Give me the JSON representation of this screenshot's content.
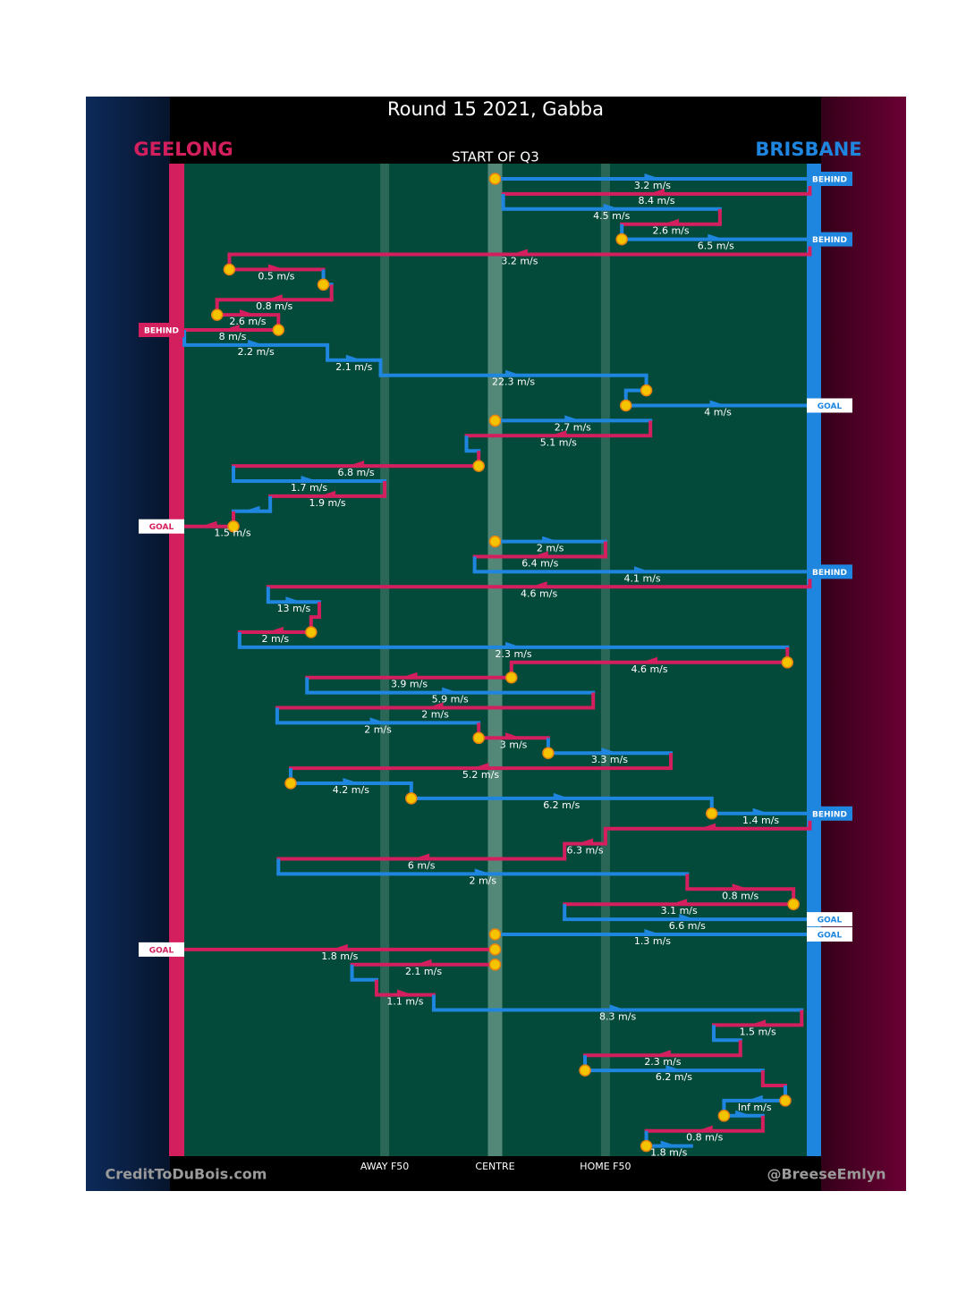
{
  "chart_data": {
    "type": "possession-chain",
    "title": "Round 15 2021, Gabba",
    "subtitle": "START OF Q3",
    "credit_left": "CreditToDuBois.com",
    "credit_right": "@BreeseEmlyn",
    "teams": [
      {
        "name": "GEELONG",
        "color": "#d41f5e"
      },
      {
        "name": "BRISBANE",
        "color": "#1f86e0"
      }
    ],
    "xlim": [
      0,
      156
    ],
    "xticks": [
      {
        "value": 51,
        "label": "AWAY F50"
      },
      {
        "value": 78,
        "label": "CENTRE"
      },
      {
        "value": 105,
        "label": "HOME F50"
      }
    ],
    "rows": [
      {
        "team": 1,
        "from": 78,
        "to": 155,
        "speed": 3.2,
        "speed_label": "3.2 m/s",
        "outcome": "BEHIND",
        "turnover": true
      },
      {
        "team": 0,
        "from": 155,
        "to": 80,
        "speed": 8.4,
        "speed_label": "8.4 m/s"
      },
      {
        "team": 1,
        "from": 80,
        "to": 133,
        "speed": 4.5,
        "speed_label": "4.5 m/s"
      },
      {
        "team": 0,
        "from": 133,
        "to": 109,
        "speed": 2.6,
        "speed_label": "2.6 m/s"
      },
      {
        "team": 1,
        "from": 109,
        "to": 155,
        "speed": 6.5,
        "speed_label": "6.5 m/s",
        "outcome": "BEHIND",
        "turnover": true
      },
      {
        "team": 0,
        "from": 155,
        "to": 13,
        "speed": 3.2,
        "speed_label": "3.2 m/s"
      },
      {
        "team": 0,
        "from": 13,
        "to": 36,
        "speed": 0.5,
        "speed_label": "0.5 m/s",
        "turnover": true
      },
      {
        "team": 1,
        "from": 36,
        "to": 38,
        "turnover": true
      },
      {
        "team": 0,
        "from": 38,
        "to": 10,
        "speed": 0.8,
        "speed_label": "0.8 m/s"
      },
      {
        "team": 0,
        "from": 10,
        "to": 25,
        "speed": 2.6,
        "speed_label": "2.6 m/s",
        "turnover": true
      },
      {
        "team": 0,
        "from": 25,
        "to": 2,
        "speed": 8,
        "speed_label": "8 m/s",
        "outcome": "BEHIND",
        "turnover": true
      },
      {
        "team": 1,
        "from": 2,
        "to": 37,
        "speed": 2.2,
        "speed_label": "2.2 m/s"
      },
      {
        "team": 1,
        "from": 37,
        "to": 50,
        "speed": 2.1,
        "speed_label": "2.1 m/s"
      },
      {
        "team": 1,
        "from": 50,
        "to": 115,
        "speed": 22.3,
        "speed_label": "22.3 m/s"
      },
      {
        "team": 1,
        "from": 115,
        "to": 110,
        "turnover": true
      },
      {
        "team": 1,
        "from": 110,
        "to": 155,
        "speed": 4,
        "speed_label": "4 m/s",
        "outcome": "GOAL",
        "turnover": true
      },
      {
        "team": 1,
        "from": 78,
        "to": 116,
        "speed": 2.7,
        "speed_label": "2.7 m/s",
        "turnover": true
      },
      {
        "team": 0,
        "from": 116,
        "to": 71,
        "speed": 5.1,
        "speed_label": "5.1 m/s"
      },
      {
        "team": 1,
        "from": 71,
        "to": 74
      },
      {
        "team": 0,
        "from": 74,
        "to": 14,
        "speed": 6.8,
        "speed_label": "6.8 m/s",
        "turnover": true
      },
      {
        "team": 1,
        "from": 14,
        "to": 51,
        "speed": 1.7,
        "speed_label": "1.7 m/s"
      },
      {
        "team": 0,
        "from": 51,
        "to": 23,
        "speed": 1.9,
        "speed_label": "1.9 m/s"
      },
      {
        "team": 1,
        "from": 23,
        "to": 14
      },
      {
        "team": 0,
        "from": 14,
        "to": 2,
        "speed": 1.5,
        "speed_label": "1.5 m/s",
        "outcome": "GOAL",
        "turnover": true
      },
      {
        "team": 1,
        "from": 78,
        "to": 105,
        "speed": 2,
        "speed_label": "2 m/s",
        "turnover": true
      },
      {
        "team": 0,
        "from": 105,
        "to": 73,
        "speed": 6.4,
        "speed_label": "6.4 m/s"
      },
      {
        "team": 1,
        "from": 73,
        "to": 155,
        "speed": 4.1,
        "speed_label": "4.1 m/s",
        "outcome": "BEHIND"
      },
      {
        "team": 0,
        "from": 155,
        "to": 22.5,
        "speed": 4.6,
        "speed_label": "4.6 m/s"
      },
      {
        "team": 1,
        "from": 22.5,
        "to": 35,
        "speed": 13,
        "speed_label": "13 m/s"
      },
      {
        "team": 0,
        "from": 35,
        "to": 33
      },
      {
        "team": 0,
        "from": 33,
        "to": 15.5,
        "speed": 2,
        "speed_label": "2 m/s",
        "turnover": true
      },
      {
        "team": 1,
        "from": 15.5,
        "to": 149.5,
        "speed": 2.3,
        "speed_label": "2.3 m/s"
      },
      {
        "team": 0,
        "from": 149.5,
        "to": 82,
        "speed": 4.6,
        "speed_label": "4.6 m/s",
        "turnover": true
      },
      {
        "team": 0,
        "from": 82,
        "to": 32,
        "speed": 3.9,
        "speed_label": "3.9 m/s",
        "turnover": true
      },
      {
        "team": 1,
        "from": 32,
        "to": 102,
        "speed": 5.9,
        "speed_label": "5.9 m/s"
      },
      {
        "team": 0,
        "from": 102,
        "to": 24.7,
        "speed": 2,
        "speed_label": "2 m/s"
      },
      {
        "team": 1,
        "from": 24.7,
        "to": 74,
        "speed": 2,
        "speed_label": "2 m/s"
      },
      {
        "team": 0,
        "from": 74,
        "to": 91,
        "speed": 3,
        "speed_label": "3 m/s",
        "turnover": true
      },
      {
        "team": 1,
        "from": 91,
        "to": 121,
        "speed": 3.3,
        "speed_label": "3.3 m/s",
        "turnover": true
      },
      {
        "team": 0,
        "from": 121,
        "to": 28,
        "speed": 5.2,
        "speed_label": "5.2 m/s"
      },
      {
        "team": 1,
        "from": 28,
        "to": 57.5,
        "speed": 4.2,
        "speed_label": "4.2 m/s",
        "turnover": true
      },
      {
        "team": 1,
        "from": 57.5,
        "to": 131,
        "speed": 6.2,
        "speed_label": "6.2 m/s",
        "turnover": true
      },
      {
        "team": 1,
        "from": 131,
        "to": 155,
        "speed": 1.4,
        "speed_label": "1.4 m/s",
        "outcome": "BEHIND",
        "turnover": true
      },
      {
        "team": 0,
        "from": 155,
        "to": 105
      },
      {
        "team": 0,
        "from": 105,
        "to": 95,
        "speed": 6.3,
        "speed_label": "6.3 m/s"
      },
      {
        "team": 0,
        "from": 95,
        "to": 25,
        "speed": 6,
        "speed_label": "6 m/s"
      },
      {
        "team": 1,
        "from": 25,
        "to": 125,
        "speed": 2,
        "speed_label": "2 m/s"
      },
      {
        "team": 0,
        "from": 125,
        "to": 151,
        "speed": 0.8,
        "speed_label": "0.8 m/s"
      },
      {
        "team": 0,
        "from": 151,
        "to": 95,
        "speed": 3.1,
        "speed_label": "3.1 m/s",
        "turnover": true
      },
      {
        "team": 1,
        "from": 95,
        "to": 155,
        "speed": 6.6,
        "speed_label": "6.6 m/s",
        "outcome": "GOAL"
      },
      {
        "team": 1,
        "from": 78,
        "to": 155,
        "speed": 1.3,
        "speed_label": "1.3 m/s",
        "outcome": "GOAL",
        "turnover": true
      },
      {
        "team": 0,
        "from": 78,
        "to": 2,
        "speed": 1.8,
        "speed_label": "1.8 m/s",
        "outcome": "GOAL",
        "turnover": true
      },
      {
        "team": 0,
        "from": 78,
        "to": 43,
        "speed": 2.1,
        "speed_label": "2.1 m/s",
        "turnover": true
      },
      {
        "team": 1,
        "from": 43,
        "to": 49
      },
      {
        "team": 0,
        "from": 49,
        "to": 63,
        "speed": 1.1,
        "speed_label": "1.1 m/s"
      },
      {
        "team": 1,
        "from": 63,
        "to": 153,
        "speed": 8.3,
        "speed_label": "8.3 m/s"
      },
      {
        "team": 0,
        "from": 153,
        "to": 131.5,
        "speed": 1.5,
        "speed_label": "1.5 m/s"
      },
      {
        "team": 1,
        "from": 131.5,
        "to": 138
      },
      {
        "team": 0,
        "from": 138,
        "to": 100,
        "speed": 2.3,
        "speed_label": "2.3 m/s"
      },
      {
        "team": 1,
        "from": 100,
        "to": 143.5,
        "speed": 6.2,
        "speed_label": "6.2 m/s",
        "turnover": true
      },
      {
        "team": 0,
        "from": 143.5,
        "to": 149
      },
      {
        "team": 1,
        "from": 149,
        "to": 134,
        "speed": null,
        "speed_label": "Inf m/s",
        "turnover": true
      },
      {
        "team": 1,
        "from": 134,
        "to": 143.5,
        "turnover": true
      },
      {
        "team": 0,
        "from": 143.5,
        "to": 115,
        "speed": 0.8,
        "speed_label": "0.8 m/s"
      },
      {
        "team": 1,
        "from": 115,
        "to": 126,
        "speed": 1.8,
        "speed_label": "1.8 m/s",
        "turnover": true
      }
    ]
  }
}
